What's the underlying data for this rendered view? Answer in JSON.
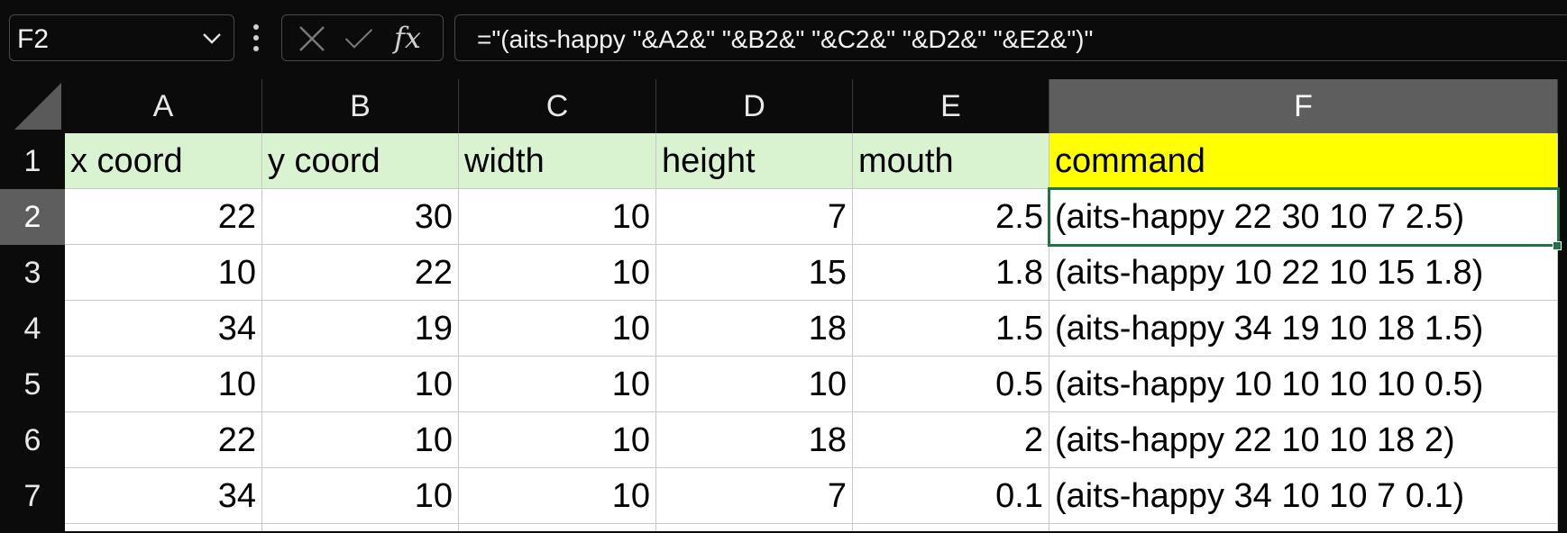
{
  "formula_bar": {
    "name_box": "F2",
    "formula": "=\"(aits-happy \"&A2&\" \"&B2&\" \"&C2&\" \"&D2&\" \"&E2&\")\"",
    "fx_label": "fx"
  },
  "grid": {
    "columns": [
      "A",
      "B",
      "C",
      "D",
      "E",
      "F"
    ],
    "selected_column": "F",
    "rows": [
      "1",
      "2",
      "3",
      "4",
      "5",
      "6",
      "7"
    ],
    "selected_row": "2",
    "header_row": [
      "x coord",
      "y coord",
      "width",
      "height",
      "mouth",
      "command"
    ],
    "data_rows": [
      [
        "22",
        "30",
        "10",
        "7",
        "2.5",
        "(aits-happy 22 30 10 7 2.5)"
      ],
      [
        "10",
        "22",
        "10",
        "15",
        "1.8",
        "(aits-happy 10 22 10 15 1.8)"
      ],
      [
        "34",
        "19",
        "10",
        "18",
        "1.5",
        "(aits-happy 34 19 10 18 1.5)"
      ],
      [
        "10",
        "10",
        "10",
        "10",
        "0.5",
        "(aits-happy 10 10 10 10 0.5)"
      ],
      [
        "22",
        "10",
        "10",
        "18",
        "2",
        "(aits-happy 22 10 10 18 2)"
      ],
      [
        "34",
        "10",
        "10",
        "7",
        "0.1",
        "(aits-happy 34 10 10 7 0.1)"
      ]
    ],
    "active_cell": "F2"
  },
  "colors": {
    "header_fill": "#d9f2d0",
    "command_header_fill": "#ffff00",
    "selection": "#217346",
    "background": "#0b0b0b"
  }
}
